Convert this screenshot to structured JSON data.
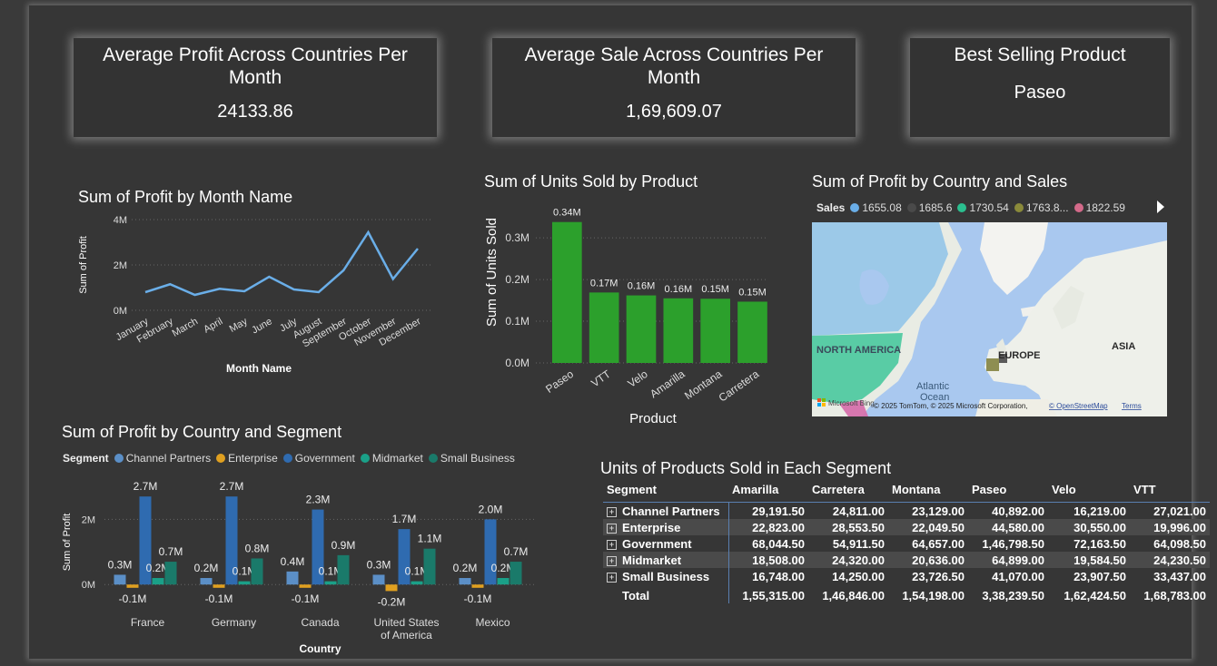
{
  "kpis": [
    {
      "title": "Average Profit Across Countries Per Month",
      "value": "24133.86"
    },
    {
      "title": "Average Sale Across Countries Per Month",
      "value": "1,69,609.07"
    },
    {
      "title": "Best Selling Product",
      "value": "Paseo"
    }
  ],
  "line_chart": {
    "title": "Sum of Profit by Month Name",
    "chart_data": {
      "type": "line",
      "xlabel": "Month Name",
      "ylabel": "Sum of Profit",
      "ylim": [
        0,
        4000000
      ],
      "ytick_labels": [
        "0M",
        "2M",
        "4M"
      ],
      "ytick_values": [
        0,
        2000000,
        4000000
      ],
      "categories": [
        "January",
        "February",
        "March",
        "April",
        "May",
        "June",
        "July",
        "August",
        "September",
        "October",
        "November",
        "December"
      ],
      "values": [
        800000,
        1150000,
        680000,
        950000,
        840000,
        1480000,
        920000,
        800000,
        1760000,
        3440000,
        1380000,
        2720000
      ],
      "color": "#6aaee8",
      "grid": true
    }
  },
  "units_chart": {
    "title": "Sum of Units Sold by Product",
    "chart_data": {
      "type": "bar",
      "xlabel": "Product",
      "ylabel": "Sum of Units Sold",
      "ylim": [
        0,
        0.37
      ],
      "ytick_labels": [
        "0.0M",
        "0.1M",
        "0.2M",
        "0.3M"
      ],
      "ytick_values": [
        0,
        0.1,
        0.2,
        0.3
      ],
      "categories": [
        "Paseo",
        "VTT",
        "Velo",
        "Amarilla",
        "Montana",
        "Carretera"
      ],
      "values": [
        0.338,
        0.169,
        0.162,
        0.155,
        0.154,
        0.147
      ],
      "data_labels": [
        "0.34M",
        "0.17M",
        "0.16M",
        "0.16M",
        "0.15M",
        "0.15M"
      ],
      "color": "#2ca02c",
      "grid": true
    }
  },
  "map": {
    "title": "Sum of Profit by Country and Sales",
    "legend_title": "Sales",
    "legend": [
      {
        "label": "1655.08",
        "color": "#6aaee8"
      },
      {
        "label": "1685.6",
        "color": "#4a4a4a"
      },
      {
        "label": "1730.54",
        "color": "#2bbf8f"
      },
      {
        "label": "1763.8...",
        "color": "#8a8a3a"
      },
      {
        "label": "1822.59",
        "color": "#d46a8a"
      }
    ],
    "labels": {
      "north_america": "NORTH AMERICA",
      "europe": "EUROPE",
      "asia": "ASIA",
      "atlantic": "Atlantic",
      "ocean": "Ocean"
    },
    "brand": "Microsoft Bing",
    "copyright": "© 2025 TomTom, © 2025 Microsoft Corporation,",
    "osm": "© OpenStreetMap",
    "terms": "Terms"
  },
  "segment_chart": {
    "title": "Sum of Profit by Country and Segment",
    "legend_title": "Segment",
    "chart_data": {
      "type": "bar",
      "xlabel": "Country",
      "ylabel": "Sum of Profit",
      "ylim": [
        -0.3,
        2.9
      ],
      "ytick_labels": [
        "0M",
        "2M"
      ],
      "ytick_values": [
        0,
        2
      ],
      "categories": [
        "France",
        "Germany",
        "Canada",
        "United States of America",
        "Mexico"
      ],
      "category_lines": [
        [
          "France"
        ],
        [
          "Germany"
        ],
        [
          "Canada"
        ],
        [
          "United States",
          "of America"
        ],
        [
          "Mexico"
        ]
      ],
      "series": [
        {
          "name": "Channel Partners",
          "color": "#5b8fc7",
          "values": [
            0.3,
            0.2,
            0.4,
            0.3,
            0.2
          ],
          "labels": [
            "0.3M",
            "0.2M",
            "0.4M",
            "0.3M",
            "0.2M"
          ]
        },
        {
          "name": "Enterprise",
          "color": "#e0a020",
          "values": [
            -0.1,
            -0.1,
            -0.1,
            -0.2,
            -0.1
          ],
          "labels": [
            "-0.1M",
            "-0.1M",
            "-0.1M",
            "-0.2M",
            "-0.1M"
          ]
        },
        {
          "name": "Government",
          "color": "#2f6bb0",
          "values": [
            2.7,
            2.7,
            2.3,
            1.7,
            2.0
          ],
          "labels": [
            "2.7M",
            "2.7M",
            "2.3M",
            "1.7M",
            "2.0M"
          ]
        },
        {
          "name": "Midmarket",
          "color": "#1aa088",
          "values": [
            0.2,
            0.1,
            0.1,
            0.1,
            0.2
          ],
          "labels": [
            "0.2M",
            "0.1M",
            "0.1M",
            "0.1M",
            "0.2M"
          ]
        },
        {
          "name": "Small Business",
          "color": "#1a7a6a",
          "values": [
            0.7,
            0.8,
            0.9,
            1.1,
            0.7
          ],
          "labels": [
            "0.7M",
            "0.8M",
            "0.9M",
            "1.1M",
            "0.7M"
          ]
        }
      ],
      "legend_position": "top-left"
    }
  },
  "matrix": {
    "title": "Units of Products Sold in Each Segment",
    "columns": [
      "Segment",
      "Amarilla",
      "Carretera",
      "Montana",
      "Paseo",
      "Velo",
      "VTT"
    ],
    "rows": [
      {
        "segment": "Channel Partners",
        "values": [
          "29,191.50",
          "24,811.00",
          "23,129.00",
          "40,892.00",
          "16,219.00",
          "27,021.00"
        ]
      },
      {
        "segment": "Enterprise",
        "values": [
          "22,823.00",
          "28,553.50",
          "22,049.50",
          "44,580.00",
          "30,550.00",
          "19,996.00"
        ]
      },
      {
        "segment": "Government",
        "values": [
          "68,044.50",
          "54,911.50",
          "64,657.00",
          "1,46,798.50",
          "72,163.50",
          "64,098.50"
        ]
      },
      {
        "segment": "Midmarket",
        "values": [
          "18,508.00",
          "24,320.00",
          "20,636.00",
          "64,899.00",
          "19,584.50",
          "24,230.50"
        ]
      },
      {
        "segment": "Small Business",
        "values": [
          "16,748.00",
          "14,250.00",
          "23,726.50",
          "41,070.00",
          "23,907.50",
          "33,437.00"
        ]
      }
    ],
    "total": {
      "segment": "Total",
      "values": [
        "1,55,315.00",
        "1,46,846.00",
        "1,54,198.00",
        "3,38,239.50",
        "1,62,424.50",
        "1,68,783.00"
      ]
    }
  }
}
